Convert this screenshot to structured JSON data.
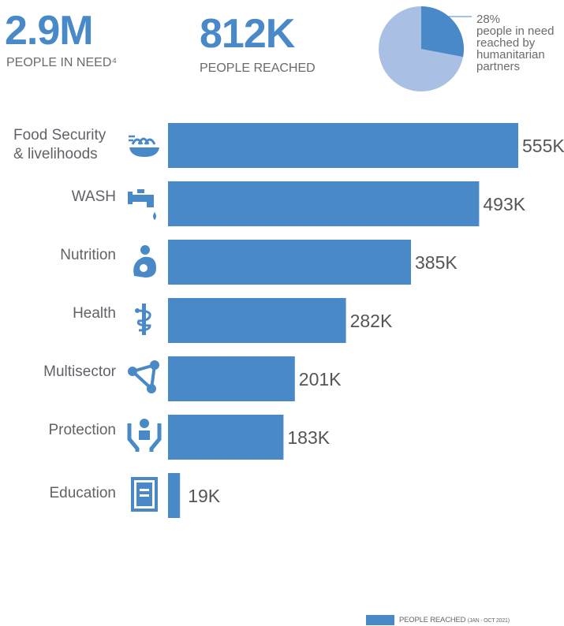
{
  "header": {
    "in_need_value": "2.9M",
    "in_need_label": "PEOPLE IN NEED⁴",
    "reached_value": "812K",
    "reached_label": "PEOPLE REACHED"
  },
  "pie": {
    "percent": 28,
    "note": "28%\npeople in need\nreached by\nhumanitarian\npartners",
    "reached_color": "#4a89c8",
    "remaining_color": "#a9bfe3"
  },
  "colors": {
    "bar": "#4a89c8",
    "icon": "#4a89c8"
  },
  "chart_data": {
    "type": "bar",
    "orientation": "horizontal",
    "categories": [
      "Food Security\n& livelihoods",
      "WASH",
      "Nutrition",
      "Health",
      "Multisector",
      "Protection",
      "Education"
    ],
    "values": [
      555,
      493,
      385,
      282,
      201,
      183,
      19
    ],
    "value_labels": [
      "555K",
      "493K",
      "385K",
      "282K",
      "201K",
      "183K",
      "19K"
    ],
    "icons": [
      "wheat-bowl-icon",
      "water-tap-icon",
      "mother-child-icon",
      "health-icon",
      "network-icon",
      "protection-icon",
      "document-icon"
    ],
    "legend": {
      "label": "PEOPLE REACHED",
      "sub": "(JAN - OCT 2021)",
      "placement": "bottom-right"
    },
    "grid": false
  }
}
